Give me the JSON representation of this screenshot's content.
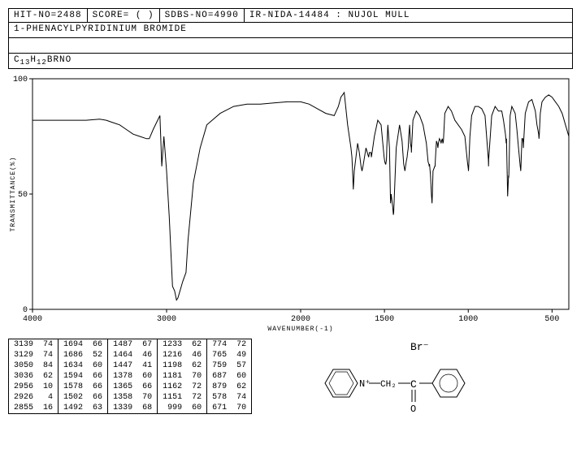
{
  "header": {
    "hit_no": "HIT-NO=2488",
    "score": "SCORE=  (  )",
    "sdbs_no": "SDBS-NO=4990",
    "ir_info": "IR-NIDA-14484 : NUJOL MULL"
  },
  "compound_name": "1-PHENACYLPYRIDINIUM BROMIDE",
  "formula_parts": {
    "pre": "C",
    "s1": "13",
    "mid": "H",
    "s2": "12",
    "post": "BRNO"
  },
  "chart": {
    "type": "line",
    "xlim": [
      4000,
      400
    ],
    "ylim": [
      0,
      100
    ],
    "xticks": [
      4000,
      3000,
      2000,
      1500,
      1000,
      500
    ],
    "yticks": [
      0,
      50,
      100
    ],
    "xlabel": "WAVENUMBER(-1)",
    "ylabel": "TRANSMITTANCE(%)",
    "xlabel_fontsize": 8,
    "background_color": "#ffffff",
    "line_color": "#000000",
    "axis_color": "#000000",
    "grid_color": "#000000",
    "line_width": 1,
    "font_family": "Courier New",
    "tick_fontsize": 10,
    "data": {
      "x": [
        4000,
        3800,
        3600,
        3500,
        3450,
        3400,
        3350,
        3300,
        3250,
        3200,
        3150,
        3139,
        3129,
        3100,
        3075,
        3050,
        3036,
        3020,
        3000,
        2980,
        2956,
        2940,
        2926,
        2915,
        2900,
        2880,
        2855,
        2840,
        2800,
        2750,
        2700,
        2600,
        2500,
        2400,
        2300,
        2200,
        2100,
        2000,
        1950,
        1900,
        1850,
        1800,
        1775,
        1760,
        1740,
        1720,
        1700,
        1694,
        1690,
        1686,
        1680,
        1660,
        1650,
        1640,
        1634,
        1628,
        1610,
        1594,
        1590,
        1580,
        1578,
        1574,
        1560,
        1540,
        1520,
        1510,
        1502,
        1498,
        1494,
        1492,
        1490,
        1488,
        1487,
        1486,
        1480,
        1470,
        1464,
        1460,
        1450,
        1447,
        1445,
        1430,
        1410,
        1395,
        1385,
        1378,
        1370,
        1365,
        1362,
        1358,
        1355,
        1350,
        1345,
        1340,
        1339,
        1338,
        1330,
        1310,
        1290,
        1270,
        1250,
        1240,
        1235,
        1233,
        1231,
        1225,
        1220,
        1216,
        1214,
        1210,
        1200,
        1198,
        1196,
        1190,
        1185,
        1181,
        1178,
        1172,
        1165,
        1162,
        1160,
        1155,
        1151,
        1148,
        1140,
        1120,
        1100,
        1080,
        1060,
        1040,
        1020,
        1005,
        1000,
        999,
        998,
        990,
        980,
        960,
        940,
        920,
        900,
        880,
        879,
        878,
        860,
        840,
        820,
        800,
        790,
        778,
        776,
        774,
        772,
        768,
        765,
        763,
        760,
        759,
        758,
        750,
        740,
        720,
        710,
        700,
        690,
        688,
        687,
        686,
        680,
        675,
        672,
        671,
        670,
        660,
        640,
        620,
        600,
        590,
        580,
        578,
        576,
        570,
        560,
        540,
        520,
        500,
        480,
        460,
        440,
        420,
        400
      ],
      "y": [
        82,
        82,
        82,
        82.5,
        82,
        81,
        80,
        78,
        76,
        75,
        74,
        74,
        74,
        78,
        81,
        84,
        62,
        75,
        60,
        40,
        10,
        8,
        4,
        5,
        8,
        12,
        16,
        30,
        55,
        70,
        80,
        85,
        88,
        89,
        89,
        89.5,
        90,
        90,
        89,
        87,
        85,
        84,
        88,
        92,
        94,
        80,
        70,
        66,
        60,
        52,
        60,
        72,
        68,
        62,
        60,
        62,
        70,
        66,
        68,
        68,
        66,
        68,
        75,
        82,
        80,
        72,
        66,
        64,
        63,
        63,
        64,
        65,
        67,
        70,
        80,
        70,
        46,
        50,
        44,
        41,
        42,
        70,
        80,
        73,
        63,
        60,
        64,
        66,
        68,
        70,
        75,
        80,
        72,
        70,
        68,
        70,
        82,
        86,
        84,
        80,
        72,
        64,
        63,
        62,
        63,
        58,
        50,
        46,
        50,
        60,
        62,
        62,
        65,
        73,
        72,
        70,
        72,
        74,
        73,
        72,
        73,
        74,
        72,
        73,
        85,
        88,
        86,
        82,
        80,
        78,
        75,
        64,
        61,
        60,
        61,
        75,
        84,
        88,
        88,
        87,
        84,
        65,
        62,
        65,
        84,
        88,
        86,
        86,
        82,
        76,
        74,
        72,
        74,
        60,
        49,
        52,
        58,
        57,
        58,
        84,
        88,
        85,
        78,
        70,
        62,
        61,
        60,
        61,
        74,
        74,
        72,
        70,
        72,
        85,
        90,
        91,
        86,
        80,
        76,
        74,
        76,
        85,
        90,
        92,
        93,
        92,
        90,
        88,
        85,
        80,
        75
      ]
    }
  },
  "peaks": {
    "columns": 5,
    "rows_per_col": 7,
    "data": [
      [
        3139,
        74,
        1694,
        66,
        1487,
        67,
        1233,
        62,
        774,
        72
      ],
      [
        3129,
        74,
        1686,
        52,
        1464,
        46,
        1216,
        46,
        765,
        49
      ],
      [
        3050,
        84,
        1634,
        60,
        1447,
        41,
        1198,
        62,
        759,
        57
      ],
      [
        3036,
        62,
        1594,
        66,
        1378,
        60,
        1181,
        70,
        687,
        60
      ],
      [
        2956,
        10,
        1578,
        66,
        1365,
        66,
        1162,
        72,
        879,
        62
      ],
      [
        2926,
        4,
        1502,
        66,
        1358,
        70,
        1151,
        72,
        578,
        74
      ],
      [
        2855,
        16,
        1492,
        63,
        1339,
        68,
        999,
        60,
        671,
        70
      ]
    ]
  },
  "structure": {
    "anion": "Br⁻",
    "bridge": "CH₂",
    "has_carbonyl": true
  }
}
